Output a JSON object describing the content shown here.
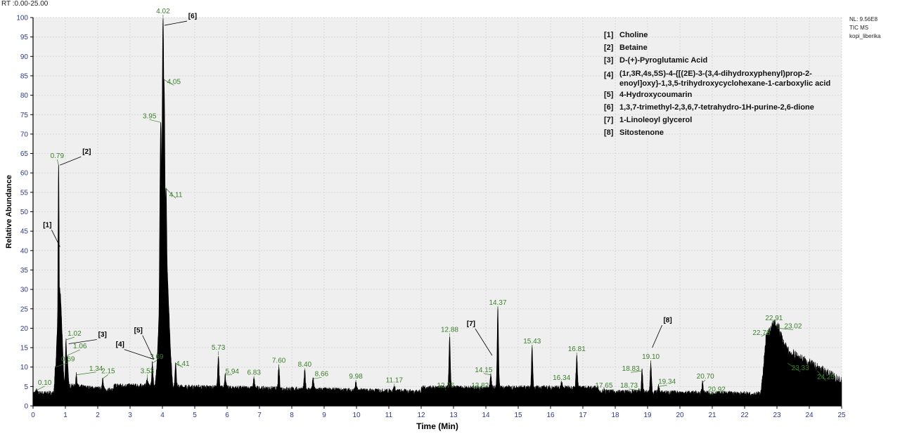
{
  "header": {
    "rt_range": "RT :0.00-25.00",
    "nl": "NL: 9.56E8",
    "tic": "TIC  MS",
    "sample": "kopi_liberika"
  },
  "legend": [
    {
      "tag": "[1]",
      "name": "Choline"
    },
    {
      "tag": "[2]",
      "name": "Betaine"
    },
    {
      "tag": "[3]",
      "name": "D-(+)-Pyroglutamic Acid"
    },
    {
      "tag": "[4]",
      "name_line1": "(1r,3R,4s,5S)-4-{[(2E)-3-(3,4-dihydroxyphenyl)prop-2-",
      "name_line2": "enoyl]oxy}-1,3,5-trihydroxycyclohexane-1-carboxylic acid"
    },
    {
      "tag": "[5]",
      "name": "4-Hydroxycoumarin"
    },
    {
      "tag": "[6]",
      "name": "1,3,7-trimethyl-2,3,6,7-tetrahydro-1H-purine-2,6-dione"
    },
    {
      "tag": "[7]",
      "name": "1-Linoleoyl glycerol"
    },
    {
      "tag": "[8]",
      "name": "Sitostenone"
    }
  ],
  "chart_data": {
    "type": "line",
    "title": "",
    "xlabel": "Time (Min)",
    "ylabel": "Relative Abundance",
    "xlim": [
      0,
      25
    ],
    "ylim": [
      0,
      100
    ],
    "x_ticks": [
      "0",
      "1",
      "2",
      "3",
      "4",
      "5",
      "6",
      "7",
      "8",
      "9",
      "10",
      "11",
      "12",
      "13",
      "14",
      "15",
      "16",
      "17",
      "18",
      "19",
      "20",
      "21",
      "22",
      "23",
      "24",
      "25"
    ],
    "y_ticks": [
      "0",
      "5",
      "10",
      "15",
      "20",
      "25",
      "30",
      "35",
      "40",
      "45",
      "50",
      "55",
      "60",
      "65",
      "70",
      "75",
      "80",
      "85",
      "90",
      "95",
      "100"
    ],
    "peaks": [
      {
        "rt": 0.1,
        "label": "0.10",
        "y": 4
      },
      {
        "rt": 0.69,
        "label": "0.69",
        "y": 10
      },
      {
        "rt": 0.79,
        "label": "0.79",
        "y": 62
      },
      {
        "rt": 1.02,
        "label": "1.02",
        "y": 17
      },
      {
        "rt": 1.06,
        "label": "1.06",
        "y": 13
      },
      {
        "rt": 1.34,
        "label": "1.34",
        "y": 8
      },
      {
        "rt": 2.15,
        "label": "2.15",
        "y": 7
      },
      {
        "rt": 3.53,
        "label": "3.53",
        "y": 7
      },
      {
        "rt": 3.69,
        "label": "3.69",
        "y": 11
      },
      {
        "rt": 3.95,
        "label": "3.95",
        "y": 73
      },
      {
        "rt": 4.02,
        "label": "4.02",
        "y": 100
      },
      {
        "rt": 4.05,
        "label": "4.05",
        "y": 84
      },
      {
        "rt": 4.11,
        "label": "4.11",
        "y": 56
      },
      {
        "rt": 4.41,
        "label": "4.41",
        "y": 11
      },
      {
        "rt": 5.73,
        "label": "5.73",
        "y": 13
      },
      {
        "rt": 5.94,
        "label": "5.94",
        "y": 8
      },
      {
        "rt": 6.83,
        "label": "6.83",
        "y": 7
      },
      {
        "rt": 7.6,
        "label": "7.60",
        "y": 10
      },
      {
        "rt": 8.4,
        "label": "8.40",
        "y": 9
      },
      {
        "rt": 8.66,
        "label": "8.66",
        "y": 7
      },
      {
        "rt": 9.98,
        "label": "9.98",
        "y": 6
      },
      {
        "rt": 11.17,
        "label": "11.17",
        "y": 5
      },
      {
        "rt": 12.76,
        "label": "12.76",
        "y": 4
      },
      {
        "rt": 12.88,
        "label": "12.88",
        "y": 18
      },
      {
        "rt": 13.82,
        "label": "13.82",
        "y": 4
      },
      {
        "rt": 14.15,
        "label": "14.15",
        "y": 8
      },
      {
        "rt": 14.37,
        "label": "14.37",
        "y": 25
      },
      {
        "rt": 15.43,
        "label": "15.43",
        "y": 15
      },
      {
        "rt": 16.34,
        "label": "16.34",
        "y": 6
      },
      {
        "rt": 16.81,
        "label": "16.81",
        "y": 13
      },
      {
        "rt": 17.65,
        "label": "17.65",
        "y": 4
      },
      {
        "rt": 18.73,
        "label": "18.73",
        "y": 4
      },
      {
        "rt": 18.83,
        "label": "18.83",
        "y": 9
      },
      {
        "rt": 19.1,
        "label": "19.10",
        "y": 11
      },
      {
        "rt": 19.34,
        "label": "19.34",
        "y": 5
      },
      {
        "rt": 20.7,
        "label": "20.70",
        "y": 6
      },
      {
        "rt": 20.92,
        "label": "20.92",
        "y": 3
      },
      {
        "rt": 22.78,
        "label": "22.78",
        "y": 19
      },
      {
        "rt": 22.91,
        "label": "22.91",
        "y": 21
      },
      {
        "rt": 23.02,
        "label": "23.02",
        "y": 20
      },
      {
        "rt": 23.33,
        "label": "23.33",
        "y": 11
      },
      {
        "rt": 24.25,
        "label": "24.25",
        "y": 9
      }
    ],
    "annotations": [
      {
        "text": "[1]",
        "rt": 0.79,
        "y": 41
      },
      {
        "text": "[2]",
        "rt": 0.79,
        "y": 62
      },
      {
        "text": "[3]",
        "rt": 1.06,
        "y": 16
      },
      {
        "text": "[4]",
        "rt": 3.69,
        "y": 12
      },
      {
        "text": "[5]",
        "rt": 3.69,
        "y": 12
      },
      {
        "text": "[6]",
        "rt": 4.02,
        "y": 98
      },
      {
        "text": "[7]",
        "rt": 14.15,
        "y": 13
      },
      {
        "text": "[8]",
        "rt": 19.1,
        "y": 15
      }
    ],
    "colors": {
      "trace": "#000000",
      "peak_label": "#3a7f2a",
      "plot_bg": "#efefef",
      "grid": "#d9d9d9",
      "border": "#000000",
      "axis_text": "#2b3a8a"
    }
  }
}
